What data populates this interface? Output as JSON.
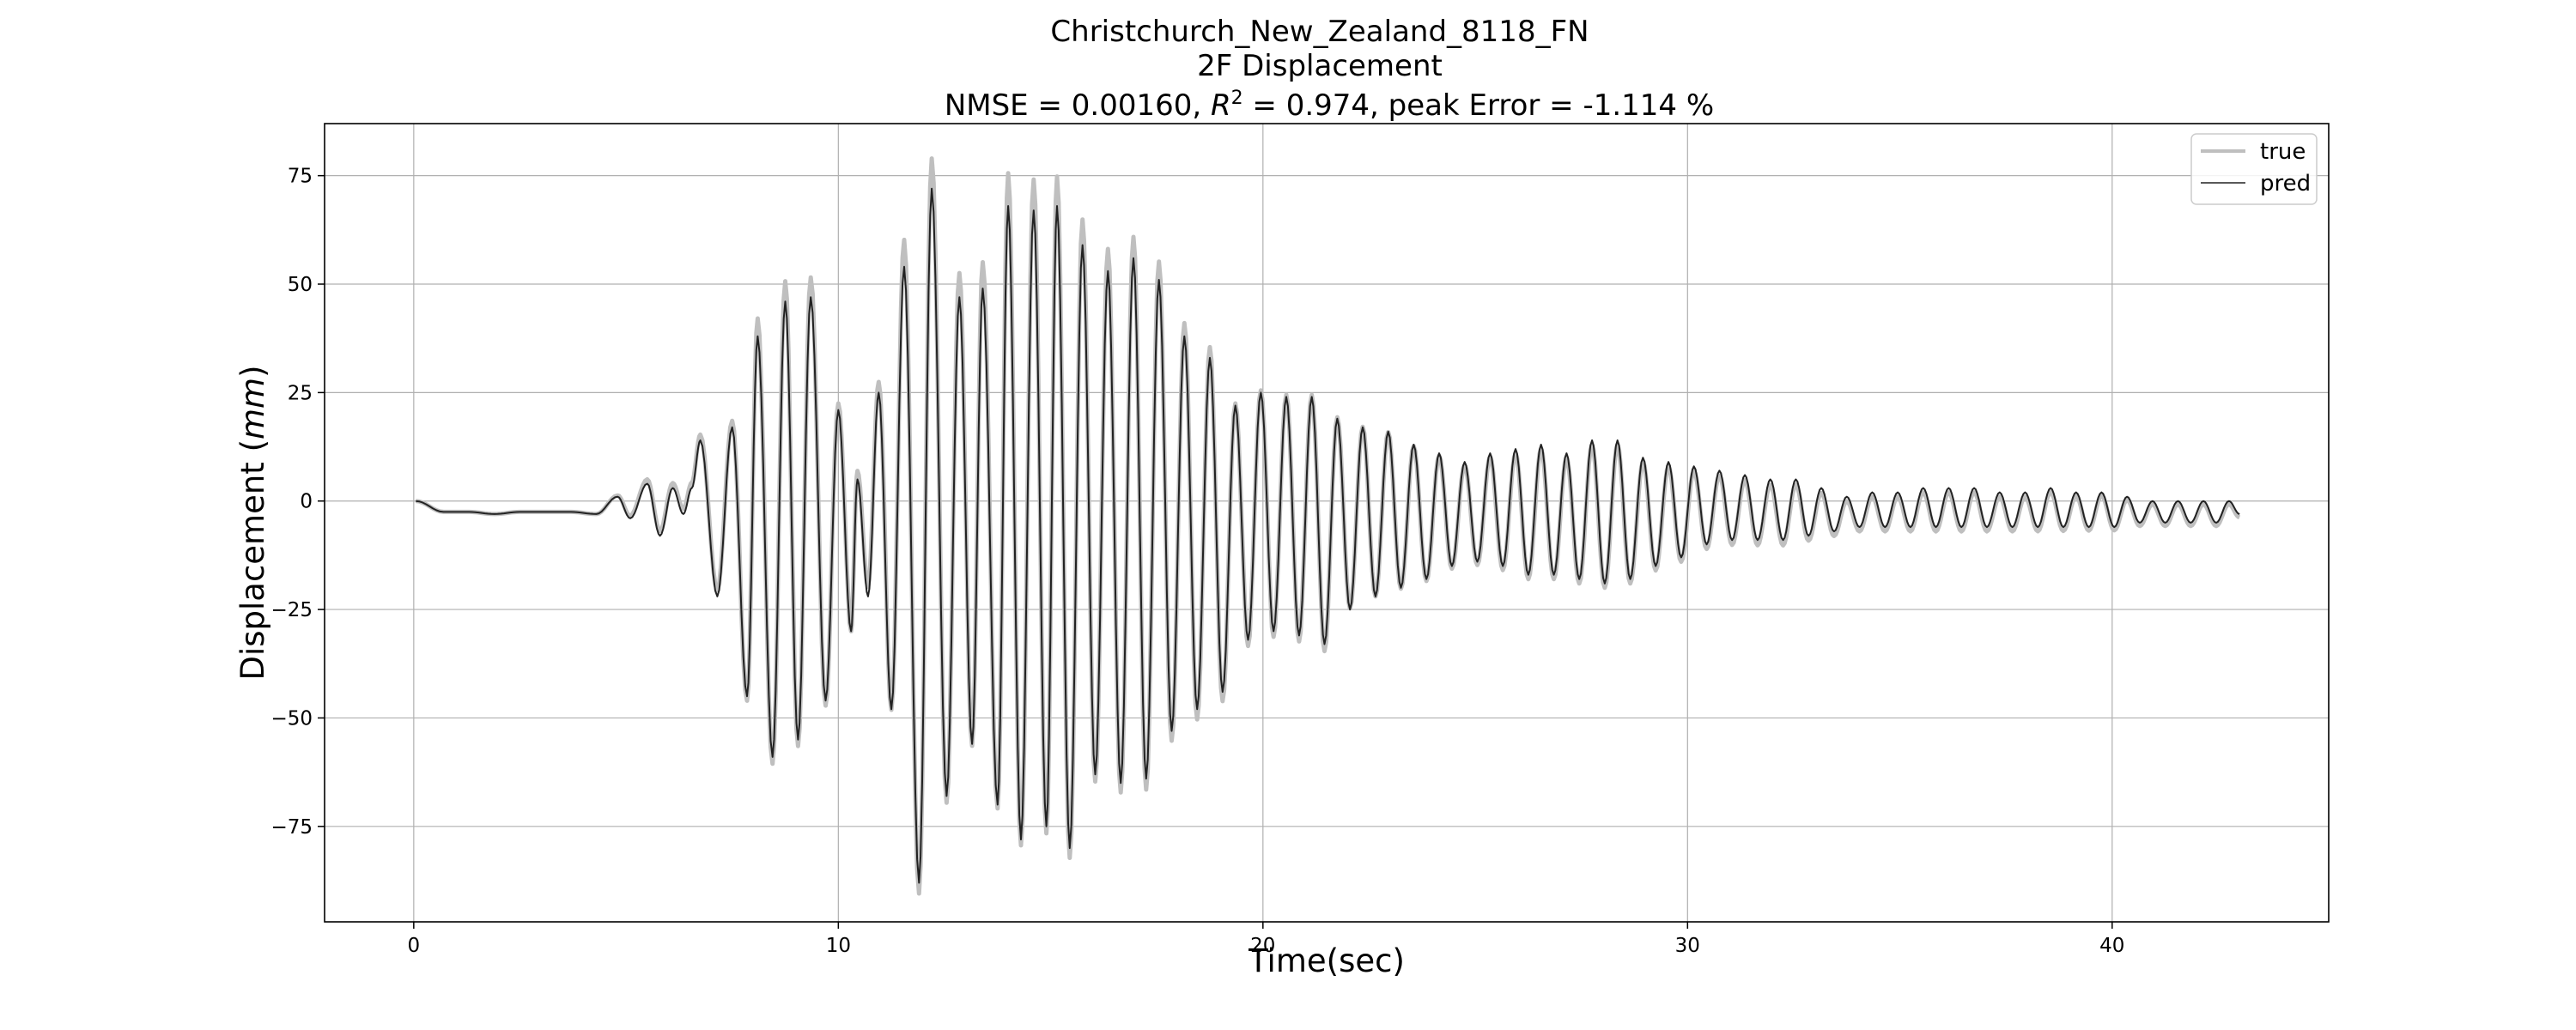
{
  "chart_data": {
    "type": "line",
    "title": "Christchurch_New_Zealand_8118_FN",
    "subtitle": "2F Displacement",
    "metrics": {
      "prefix": "NMSE = 0.00160, ",
      "r2_symbol": "R",
      "r2_exponent": "2",
      "suffix": " = 0.974, peak Error = -1.114 %"
    },
    "xlabel": "Time(sec)",
    "ylabel": {
      "main": "Displacement (",
      "unit": "mm",
      "close": ")"
    },
    "xlim": [
      -2.1,
      45.1
    ],
    "ylim": [
      -97,
      87
    ],
    "xticks": [
      0,
      10,
      20,
      30,
      40
    ],
    "xtick_labels": [
      "0",
      "10",
      "20",
      "30",
      "40"
    ],
    "yticks": [
      -75,
      -50,
      -25,
      0,
      25,
      50,
      75
    ],
    "ytick_labels": [
      "−75",
      "−50",
      "−25",
      "0",
      "25",
      "50",
      "75"
    ],
    "grid": true,
    "legend_position": "upper-right",
    "series": [
      {
        "name": "true",
        "color": "#bfbfbf",
        "style": "thick"
      },
      {
        "name": "pred",
        "color": "#222222",
        "style": "thin"
      }
    ],
    "extrema": [
      [
        0.05,
        0
      ],
      [
        0.7,
        -2.5
      ],
      [
        1.3,
        -2.5
      ],
      [
        1.9,
        -3
      ],
      [
        2.5,
        -2.5
      ],
      [
        3.1,
        -2.5
      ],
      [
        3.7,
        -2.5
      ],
      [
        4.3,
        -3
      ],
      [
        4.8,
        1
      ],
      [
        5.1,
        -4
      ],
      [
        5.5,
        4
      ],
      [
        5.8,
        -8
      ],
      [
        6.1,
        3
      ],
      [
        6.35,
        -3
      ],
      [
        6.55,
        3
      ],
      [
        6.75,
        14
      ],
      [
        7.15,
        -22
      ],
      [
        7.5,
        17
      ],
      [
        7.85,
        -45
      ],
      [
        8.1,
        38
      ],
      [
        8.45,
        -59
      ],
      [
        8.75,
        46
      ],
      [
        9.05,
        -55
      ],
      [
        9.35,
        47
      ],
      [
        9.7,
        -46
      ],
      [
        10.0,
        21
      ],
      [
        10.3,
        -30
      ],
      [
        10.45,
        5
      ],
      [
        10.7,
        -22
      ],
      [
        10.95,
        25
      ],
      [
        11.25,
        -48
      ],
      [
        11.55,
        54
      ],
      [
        11.9,
        -88
      ],
      [
        12.2,
        72
      ],
      [
        12.55,
        -68
      ],
      [
        12.85,
        47
      ],
      [
        13.15,
        -56
      ],
      [
        13.4,
        49
      ],
      [
        13.75,
        -70
      ],
      [
        14.0,
        68
      ],
      [
        14.3,
        -78
      ],
      [
        14.6,
        67
      ],
      [
        14.9,
        -75
      ],
      [
        15.15,
        68
      ],
      [
        15.45,
        -80
      ],
      [
        15.75,
        59
      ],
      [
        16.05,
        -63
      ],
      [
        16.35,
        53
      ],
      [
        16.65,
        -65
      ],
      [
        16.95,
        56
      ],
      [
        17.25,
        -64
      ],
      [
        17.55,
        51
      ],
      [
        17.85,
        -53
      ],
      [
        18.15,
        38
      ],
      [
        18.45,
        -48
      ],
      [
        18.75,
        33
      ],
      [
        19.05,
        -44
      ],
      [
        19.35,
        22
      ],
      [
        19.65,
        -32
      ],
      [
        19.95,
        25
      ],
      [
        20.25,
        -30
      ],
      [
        20.55,
        24
      ],
      [
        20.85,
        -31
      ],
      [
        21.15,
        24
      ],
      [
        21.45,
        -33
      ],
      [
        21.75,
        19
      ],
      [
        22.05,
        -25
      ],
      [
        22.35,
        17
      ],
      [
        22.65,
        -22
      ],
      [
        22.95,
        16
      ],
      [
        23.25,
        -20
      ],
      [
        23.55,
        13
      ],
      [
        23.85,
        -18
      ],
      [
        24.15,
        11
      ],
      [
        24.45,
        -15
      ],
      [
        24.75,
        9
      ],
      [
        25.05,
        -14
      ],
      [
        25.35,
        11
      ],
      [
        25.65,
        -15
      ],
      [
        25.95,
        12
      ],
      [
        26.25,
        -17
      ],
      [
        26.55,
        13
      ],
      [
        26.85,
        -17
      ],
      [
        27.15,
        11
      ],
      [
        27.45,
        -18
      ],
      [
        27.75,
        14
      ],
      [
        28.05,
        -19
      ],
      [
        28.35,
        14
      ],
      [
        28.65,
        -18
      ],
      [
        28.95,
        10
      ],
      [
        29.25,
        -15
      ],
      [
        29.55,
        9
      ],
      [
        29.85,
        -13
      ],
      [
        30.15,
        8
      ],
      [
        30.45,
        -10
      ],
      [
        30.75,
        7
      ],
      [
        31.05,
        -9
      ],
      [
        31.35,
        6
      ],
      [
        31.65,
        -9
      ],
      [
        31.95,
        5
      ],
      [
        32.25,
        -9
      ],
      [
        32.55,
        5
      ],
      [
        32.85,
        -8
      ],
      [
        33.15,
        3
      ],
      [
        33.45,
        -7
      ],
      [
        33.75,
        1
      ],
      [
        34.05,
        -6
      ],
      [
        34.35,
        2
      ],
      [
        34.65,
        -6
      ],
      [
        34.95,
        2
      ],
      [
        35.25,
        -6
      ],
      [
        35.55,
        3
      ],
      [
        35.85,
        -6
      ],
      [
        36.15,
        3
      ],
      [
        36.45,
        -6
      ],
      [
        36.75,
        3
      ],
      [
        37.05,
        -6
      ],
      [
        37.35,
        2
      ],
      [
        37.65,
        -6
      ],
      [
        37.95,
        2
      ],
      [
        38.25,
        -6
      ],
      [
        38.55,
        3
      ],
      [
        38.85,
        -6
      ],
      [
        39.15,
        2
      ],
      [
        39.45,
        -6
      ],
      [
        39.75,
        2
      ],
      [
        40.05,
        -6
      ],
      [
        40.35,
        1
      ],
      [
        40.65,
        -5
      ],
      [
        40.95,
        0
      ],
      [
        41.25,
        -5
      ],
      [
        41.55,
        0
      ],
      [
        41.85,
        -5
      ],
      [
        42.15,
        0
      ],
      [
        42.45,
        -5
      ],
      [
        42.75,
        0
      ],
      [
        43.0,
        -3
      ]
    ],
    "true_deviation": [
      [
        0,
        0
      ],
      [
        4.5,
        0
      ],
      [
        5.5,
        2
      ],
      [
        7.5,
        3
      ],
      [
        8.5,
        4
      ],
      [
        10,
        3
      ],
      [
        11.5,
        6
      ],
      [
        12.5,
        5
      ],
      [
        14,
        7
      ],
      [
        15.5,
        5
      ],
      [
        17,
        3
      ],
      [
        18.5,
        1
      ],
      [
        20,
        1
      ],
      [
        21,
        1
      ],
      [
        22,
        0.5
      ],
      [
        24,
        -1
      ],
      [
        26,
        -2
      ],
      [
        28,
        -2
      ],
      [
        30,
        -2
      ],
      [
        32,
        -2.5
      ],
      [
        34,
        -2
      ],
      [
        36,
        -2
      ],
      [
        38,
        -2
      ],
      [
        40,
        -1.5
      ],
      [
        43,
        -1.5
      ]
    ]
  }
}
